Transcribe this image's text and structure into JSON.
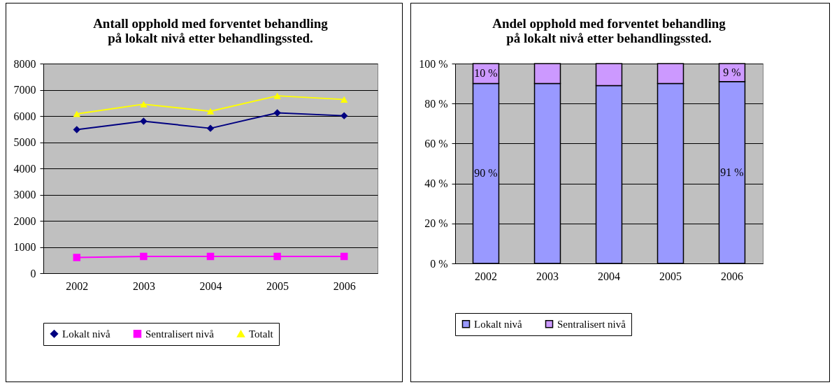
{
  "chart_data": [
    {
      "type": "line",
      "title": "Antall opphold med forventet behandling\npå lokalt nivå etter behandlingssted.",
      "categories": [
        "2002",
        "2003",
        "2004",
        "2005",
        "2006"
      ],
      "series": [
        {
          "name": "Lokalt nivå",
          "color": "#000080",
          "marker": "diamond",
          "values": [
            5480,
            5800,
            5530,
            6120,
            6010
          ]
        },
        {
          "name": "Sentralisert nivå",
          "color": "#ff00ff",
          "marker": "square",
          "values": [
            600,
            640,
            640,
            640,
            640
          ]
        },
        {
          "name": "Totalt",
          "color": "#ffff00",
          "marker": "triangle",
          "values": [
            6080,
            6450,
            6180,
            6770,
            6630
          ]
        }
      ],
      "ylim": [
        0,
        8000
      ],
      "yticks": [
        0,
        1000,
        2000,
        3000,
        4000,
        5000,
        6000,
        7000,
        8000
      ],
      "grid": "y",
      "legend": "bottom"
    },
    {
      "type": "bar",
      "stacked": true,
      "title": "Andel opphold med forventet behandling\npå lokalt nivå etter behandlingssted.",
      "categories": [
        "2002",
        "2003",
        "2004",
        "2005",
        "2006"
      ],
      "series": [
        {
          "name": "Lokalt nivå",
          "color": "#9999ff",
          "values": [
            90,
            90,
            89,
            90,
            91
          ],
          "value_labels": [
            "90 %",
            null,
            null,
            null,
            "91 %"
          ]
        },
        {
          "name": "Sentralisert nivå",
          "color": "#cc99ff",
          "values": [
            10,
            10,
            11,
            10,
            9
          ],
          "value_labels": [
            "10 %",
            null,
            null,
            null,
            "9 %"
          ]
        }
      ],
      "ylim": [
        0,
        100
      ],
      "yticks": [
        {
          "value": 0,
          "label": "0 %"
        },
        {
          "value": 20,
          "label": "20 %"
        },
        {
          "value": 40,
          "label": "40 %"
        },
        {
          "value": 60,
          "label": "60 %"
        },
        {
          "value": 80,
          "label": "80 %"
        },
        {
          "value": 100,
          "label": "100 %"
        }
      ],
      "grid": "y",
      "legend": "bottom"
    }
  ]
}
